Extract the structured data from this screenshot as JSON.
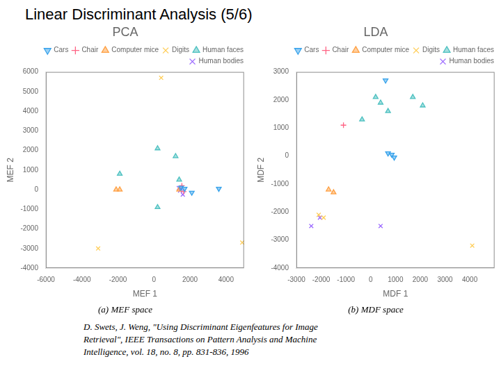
{
  "title": "Linear Discriminant Analysis (5/6)",
  "annotations": [
    "D. Swets, J. Weng, \"Using Discriminant Eigenfeatures for Image\nRetrieval\", IEEE Transactions on Pattern Analysis and Machine\nIntelligence, vol. 18, no. 8, pp. 831-836, 1996"
  ],
  "chart_data": [
    {
      "type": "scatter",
      "title": "PCA",
      "subtitle": "(a) MEF space",
      "xlabel": "MEF 1",
      "ylabel": "MEF 2",
      "xlim": [
        -6000,
        5000
      ],
      "ylim": [
        -4000,
        6000
      ],
      "xticks": [
        -6000,
        -4000,
        -2000,
        0,
        2000,
        4000
      ],
      "yticks": [
        -4000,
        -3000,
        -2000,
        -1000,
        0,
        1000,
        2000,
        3000,
        4000,
        5000,
        6000
      ],
      "grid": false,
      "legend": "upper right",
      "series": [
        {
          "name": "Cars",
          "marker": "triangle_down",
          "x": [
            1500,
            1700,
            2100,
            3600
          ],
          "values": [
            100,
            50,
            -150,
            50
          ]
        },
        {
          "name": "Chair",
          "marker": "plus",
          "x": [
            1550,
            1650
          ],
          "values": [
            200,
            -100
          ]
        },
        {
          "name": "Computer mice",
          "marker": "triangle",
          "x": [
            -2100,
            -1900,
            1400
          ],
          "values": [
            0,
            0,
            0
          ]
        },
        {
          "name": "Digits",
          "marker": "x",
          "x": [
            400,
            4900,
            -3100
          ],
          "values": [
            5700,
            -2700,
            -3000
          ]
        },
        {
          "name": "Human faces",
          "marker": "triangle",
          "x": [
            -1900,
            200,
            1200,
            1400,
            200
          ],
          "values": [
            800,
            2100,
            1700,
            500,
            -900
          ]
        },
        {
          "name": "Human bodies",
          "marker": "x",
          "x": [
            1600,
            1450,
            1500,
            1380
          ],
          "values": [
            -250,
            -50,
            50,
            80
          ]
        }
      ]
    },
    {
      "type": "scatter",
      "title": "LDA",
      "subtitle": "(b) MDF space",
      "xlabel": "MDF 1",
      "ylabel": "MDF 2",
      "xlim": [
        -3000,
        5000
      ],
      "ylim": [
        -4000,
        3000
      ],
      "xticks": [
        -3000,
        -2000,
        -1000,
        0,
        1000,
        2000,
        3000,
        4000
      ],
      "yticks": [
        -4000,
        -3000,
        -2000,
        -1000,
        0,
        1000,
        2000,
        3000
      ],
      "grid": false,
      "legend": "upper right",
      "series": [
        {
          "name": "Cars",
          "marker": "triangle_down",
          "x": [
            600,
            700,
            850,
            950
          ],
          "values": [
            2700,
            100,
            50,
            -50
          ]
        },
        {
          "name": "Chair",
          "marker": "plus",
          "x": [
            -1100
          ],
          "values": [
            1100
          ]
        },
        {
          "name": "Computer mice",
          "marker": "triangle",
          "x": [
            -1700,
            -1500
          ],
          "values": [
            -1200,
            -1300
          ]
        },
        {
          "name": "Digits",
          "marker": "x",
          "x": [
            -2100,
            -1900,
            4100
          ],
          "values": [
            -2100,
            -2200,
            -3200
          ]
        },
        {
          "name": "Human faces",
          "marker": "triangle",
          "x": [
            200,
            400,
            700,
            1700,
            2100,
            -350
          ],
          "values": [
            2100,
            1900,
            1600,
            2100,
            1800,
            1300
          ]
        },
        {
          "name": "Human bodies",
          "marker": "x",
          "x": [
            -2050,
            -2400,
            400
          ],
          "values": [
            -2200,
            -2500,
            -2500
          ]
        }
      ]
    }
  ]
}
